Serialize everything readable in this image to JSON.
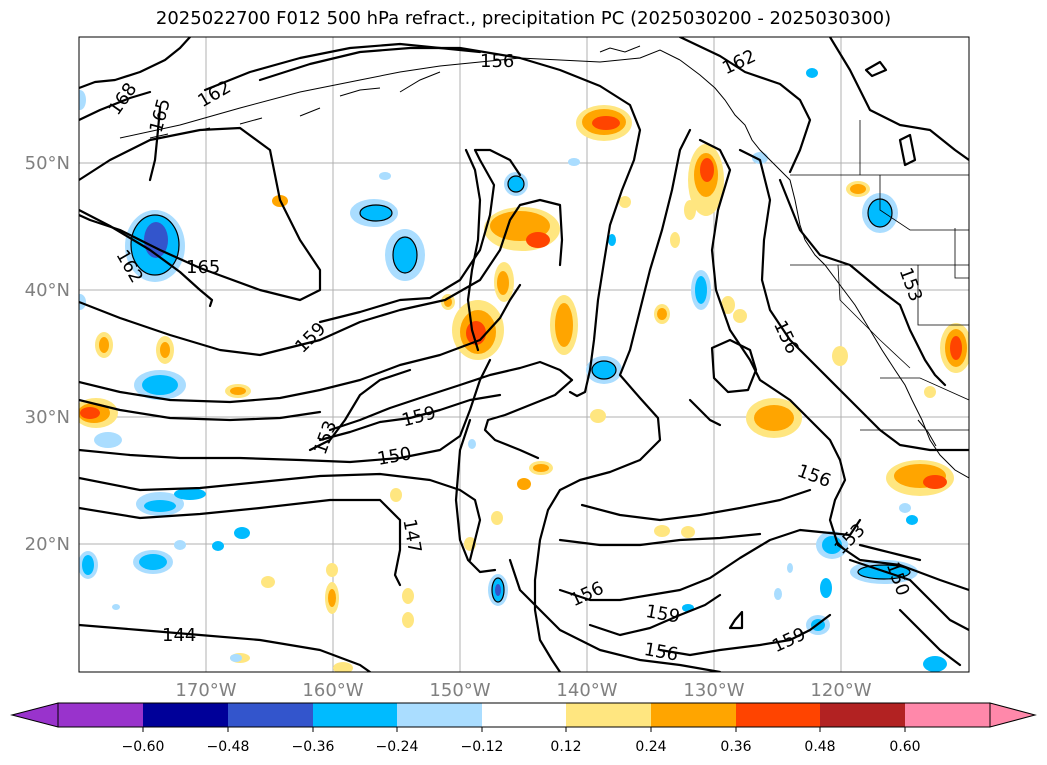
{
  "title": "2025022700 F012 500 hPa refract., precipitation PC (2025030200 - 2025030300)",
  "lon_labels": [
    "170°W",
    "160°W",
    "150°W",
    "140°W",
    "130°W",
    "120°W"
  ],
  "lat_labels": [
    "50°N",
    "40°N",
    "30°N",
    "20°N"
  ],
  "contour_labels": [
    "168",
    "165",
    "162",
    "162",
    "156",
    "165",
    "162",
    "159",
    "153",
    "159",
    "150",
    "147",
    "144",
    "156",
    "159",
    "156",
    "159",
    "156",
    "153",
    "150",
    "156",
    "153"
  ],
  "colorbar": {
    "tick_labels": [
      "−0.60",
      "−0.48",
      "−0.36",
      "−0.24",
      "−0.12",
      "0.12",
      "0.24",
      "0.36",
      "0.48",
      "0.60"
    ],
    "colors": [
      "#9933cc",
      "#000099",
      "#3355cc",
      "#00bbff",
      "#aaddff",
      "#ffffff",
      "#ffe680",
      "#ffa500",
      "#ff4400",
      "#b22222",
      "#ff88aa"
    ]
  },
  "palette": {
    "light_blue": "#aaddff",
    "blue": "#00bbff",
    "dark_blue": "#3355cc",
    "yellow": "#ffe680",
    "orange": "#ffa500",
    "red_orange": "#ff4400"
  }
}
